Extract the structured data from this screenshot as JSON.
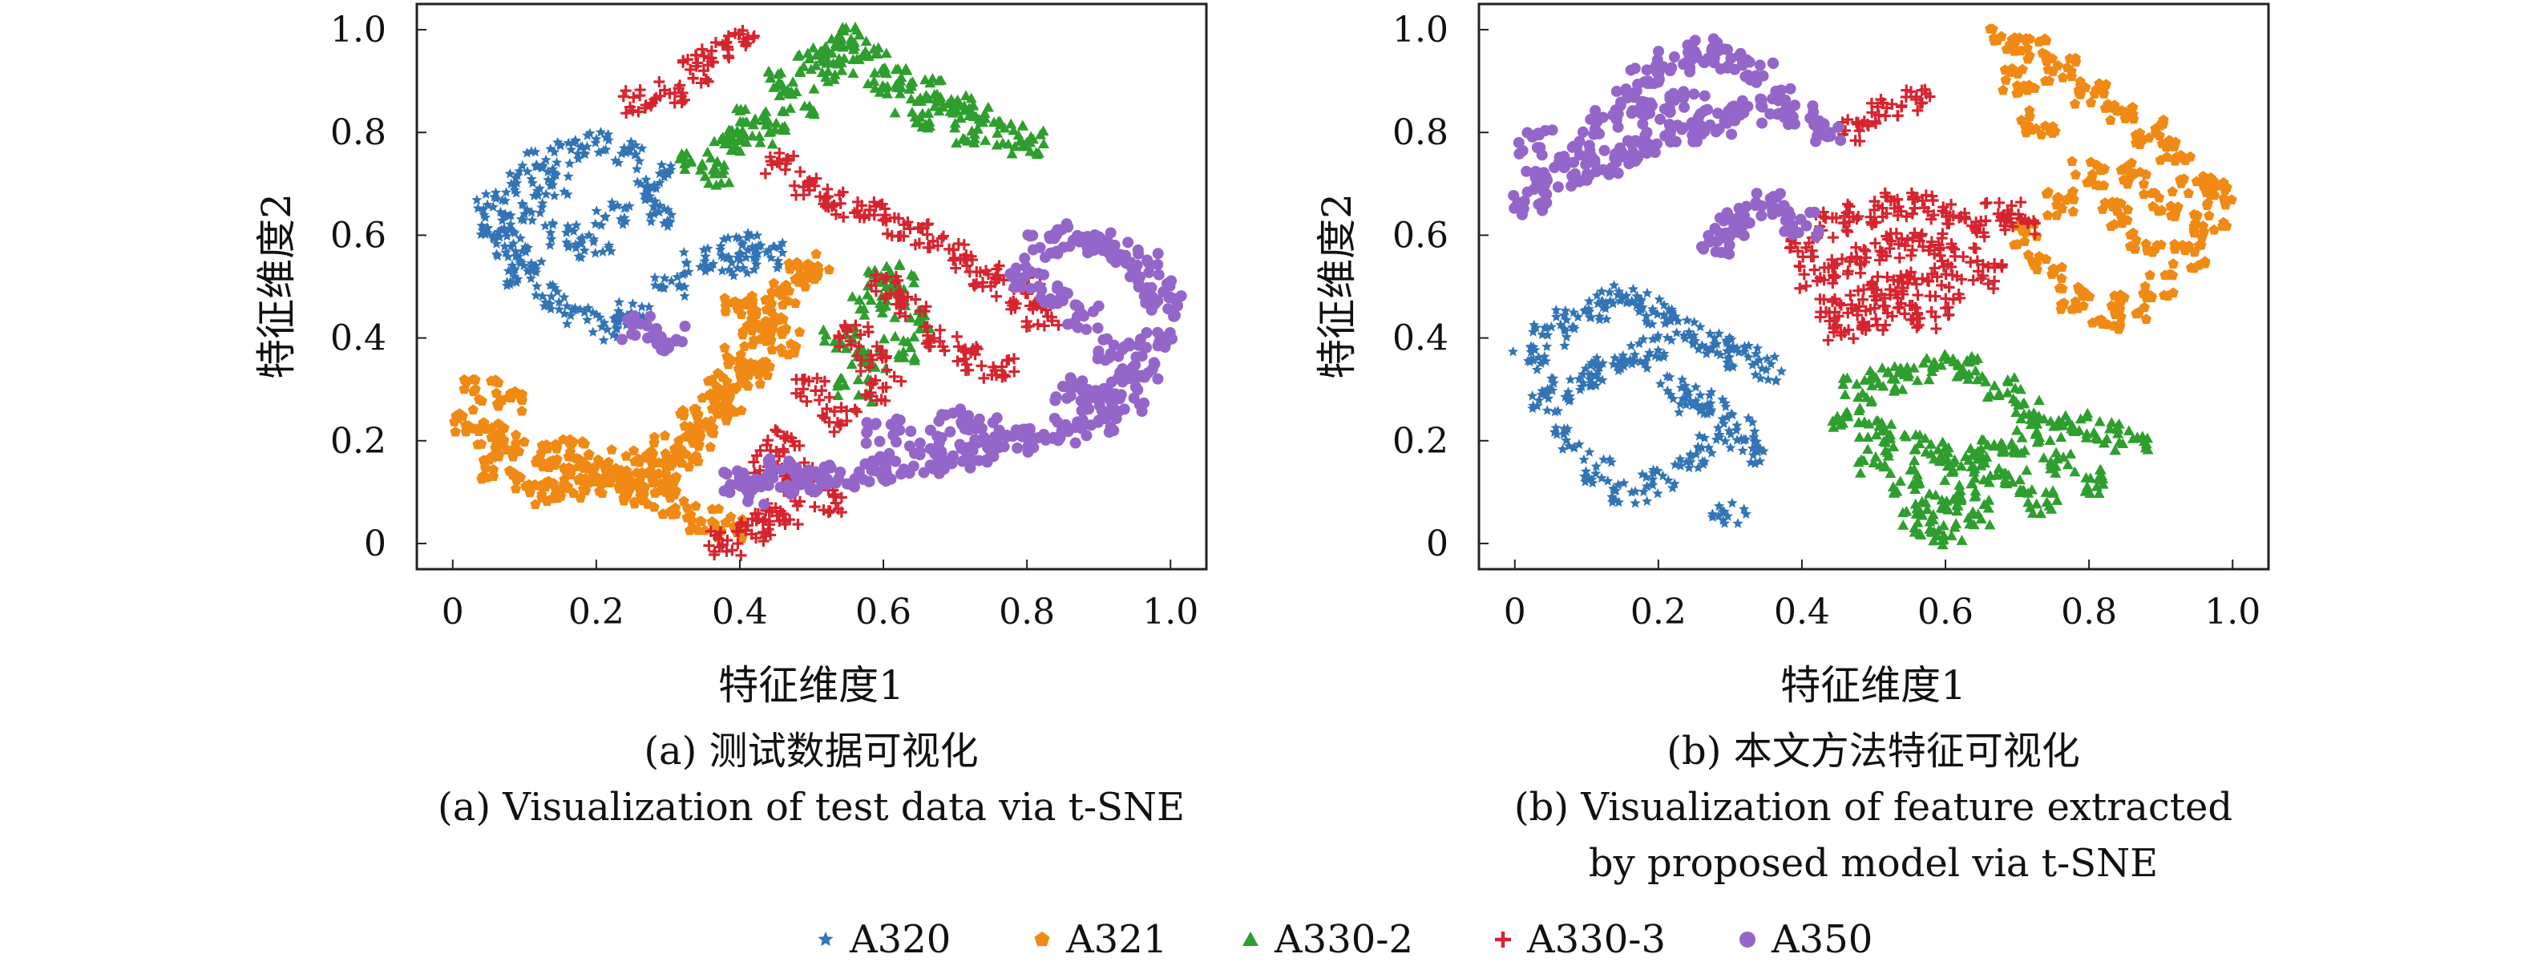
{
  "chart_data": [
    {
      "type": "scatter",
      "title": "",
      "xlabel": "特征维度1",
      "ylabel": "特征维度2",
      "xlim": [
        -0.05,
        1.05
      ],
      "ylim": [
        -0.05,
        1.05
      ],
      "xticks": [
        "0",
        "0.2",
        "0.4",
        "0.6",
        "0.8",
        "1.0"
      ],
      "yticks": [
        "0",
        "0.2",
        "0.4",
        "0.6",
        "0.8",
        "1.0"
      ],
      "xtick_values": [
        0,
        0.2,
        0.4,
        0.6,
        0.8,
        1.0
      ],
      "ytick_values": [
        0,
        0.2,
        0.4,
        0.6,
        0.8,
        1.0
      ],
      "caption_cn": "(a) 测试数据可视化",
      "caption_en": [
        "(a) Visualization of test data via t-SNE"
      ],
      "series": [
        {
          "name": "A320",
          "clusters": [
            {
              "x": [
                0.06,
                0.1,
                0.14,
                0.18,
                0.22,
                0.25,
                0.1,
                0.12,
                0.16,
                0.2,
                0.24,
                0.28,
                0.08,
                0.1,
                0.14,
                0.3,
                0.34,
                0.38,
                0.42,
                0.44,
                0.4,
                0.05,
                0.06,
                0.22,
                0.26,
                0.3,
                0.12,
                0.16,
                0.2
              ],
              "y": [
                0.62,
                0.55,
                0.48,
                0.44,
                0.42,
                0.45,
                0.7,
                0.74,
                0.76,
                0.78,
                0.76,
                0.72,
                0.58,
                0.52,
                0.7,
                0.5,
                0.55,
                0.58,
                0.58,
                0.56,
                0.54,
                0.66,
                0.6,
                0.64,
                0.68,
                0.64,
                0.64,
                0.6,
                0.58
              ]
            }
          ]
        },
        {
          "name": "A321",
          "clusters": [
            {
              "x": [
                0.02,
                0.05,
                0.08,
                0.12,
                0.16,
                0.2,
                0.24,
                0.28,
                0.3,
                0.32,
                0.34,
                0.36,
                0.38,
                0.4,
                0.42,
                0.44,
                0.46,
                0.48,
                0.5,
                0.3,
                0.26,
                0.22,
                0.18,
                0.14,
                0.1,
                0.06,
                0.34,
                0.38,
                0.42,
                0.46,
                0.35,
                0.38,
                0.3,
                0.26,
                0.2,
                0.16,
                0.08,
                0.04,
                0.4,
                0.44
              ],
              "y": [
                0.24,
                0.21,
                0.19,
                0.17,
                0.14,
                0.12,
                0.11,
                0.12,
                0.14,
                0.17,
                0.21,
                0.26,
                0.31,
                0.36,
                0.41,
                0.45,
                0.49,
                0.52,
                0.54,
                0.19,
                0.16,
                0.13,
                0.11,
                0.1,
                0.12,
                0.15,
                0.24,
                0.28,
                0.33,
                0.39,
                0.05,
                0.03,
                0.08,
                0.1,
                0.16,
                0.18,
                0.28,
                0.3,
                0.47,
                0.43
              ]
            }
          ]
        },
        {
          "name": "A330-2",
          "clusters": [
            {
              "x": [
                0.34,
                0.38,
                0.42,
                0.46,
                0.5,
                0.54,
                0.58,
                0.62,
                0.66,
                0.7,
                0.74,
                0.78,
                0.8,
                0.44,
                0.48,
                0.52,
                0.56,
                0.6,
                0.64,
                0.68,
                0.72,
                0.54,
                0.58,
                0.6,
                0.62,
                0.64,
                0.58,
                0.56,
                0.62,
                0.4,
                0.36
              ],
              "y": [
                0.74,
                0.78,
                0.84,
                0.9,
                0.94,
                0.96,
                0.94,
                0.9,
                0.88,
                0.85,
                0.83,
                0.8,
                0.78,
                0.8,
                0.86,
                0.92,
                0.98,
                0.9,
                0.82,
                0.86,
                0.8,
                0.4,
                0.46,
                0.52,
                0.5,
                0.44,
                0.36,
                0.3,
                0.38,
                0.78,
                0.72
              ]
            }
          ]
        },
        {
          "name": "A330-3",
          "clusters": [
            {
              "x": [
                0.46,
                0.5,
                0.54,
                0.58,
                0.62,
                0.66,
                0.7,
                0.74,
                0.78,
                0.8,
                0.82,
                0.6,
                0.64,
                0.68,
                0.72,
                0.76,
                0.5,
                0.54,
                0.46,
                0.44,
                0.48,
                0.52,
                0.6,
                0.58,
                0.56,
                0.26,
                0.3,
                0.34,
                0.36,
                0.4,
                0.44,
                0.42,
                0.38,
                0.46,
                0.48
              ],
              "y": [
                0.74,
                0.7,
                0.66,
                0.64,
                0.62,
                0.6,
                0.56,
                0.52,
                0.5,
                0.48,
                0.44,
                0.5,
                0.46,
                0.4,
                0.36,
                0.34,
                0.3,
                0.24,
                0.2,
                0.16,
                0.12,
                0.08,
                0.3,
                0.36,
                0.4,
                0.86,
                0.88,
                0.92,
                0.96,
                0.98,
                0.04,
                0.02,
                0.0,
                0.06,
                0.14
              ]
            }
          ]
        },
        {
          "name": "A350",
          "clusters": [
            {
              "x": [
                0.5,
                0.54,
                0.58,
                0.62,
                0.66,
                0.7,
                0.74,
                0.78,
                0.82,
                0.86,
                0.9,
                0.94,
                0.96,
                0.98,
                0.99,
                0.98,
                0.96,
                0.93,
                0.9,
                0.86,
                0.82,
                0.8,
                0.84,
                0.88,
                0.92,
                0.94,
                0.9,
                0.86,
                0.74,
                0.7,
                0.66,
                0.6,
                0.4,
                0.42,
                0.46,
                0.48,
                0.3,
                0.26
              ],
              "y": [
                0.12,
                0.13,
                0.14,
                0.15,
                0.16,
                0.17,
                0.18,
                0.2,
                0.21,
                0.22,
                0.24,
                0.28,
                0.34,
                0.4,
                0.46,
                0.5,
                0.54,
                0.57,
                0.59,
                0.6,
                0.58,
                0.52,
                0.48,
                0.44,
                0.38,
                0.32,
                0.28,
                0.3,
                0.22,
                0.24,
                0.2,
                0.22,
                0.12,
                0.1,
                0.14,
                0.12,
                0.4,
                0.42
              ]
            }
          ]
        }
      ]
    },
    {
      "type": "scatter",
      "title": "",
      "xlabel": "特征维度1",
      "ylabel": "特征维度2",
      "xlim": [
        -0.05,
        1.05
      ],
      "ylim": [
        -0.05,
        1.05
      ],
      "xticks": [
        "0",
        "0.2",
        "0.4",
        "0.6",
        "0.8",
        "1.0"
      ],
      "yticks": [
        "0",
        "0.2",
        "0.4",
        "0.6",
        "0.8",
        "1.0"
      ],
      "xtick_values": [
        0,
        0.2,
        0.4,
        0.6,
        0.8,
        1.0
      ],
      "ytick_values": [
        0,
        0.2,
        0.4,
        0.6,
        0.8,
        1.0
      ],
      "caption_cn": "(b) 本文方法特征可视化",
      "caption_en": [
        "(b) Visualization of feature extracted",
        "by proposed model via t-SNE"
      ],
      "series": [
        {
          "name": "A320",
          "clusters": [
            {
              "x": [
                0.02,
                0.05,
                0.08,
                0.11,
                0.14,
                0.17,
                0.2,
                0.23,
                0.26,
                0.29,
                0.32,
                0.35,
                0.04,
                0.07,
                0.1,
                0.13,
                0.16,
                0.19,
                0.22,
                0.25,
                0.28,
                0.31,
                0.34,
                0.08,
                0.12,
                0.16,
                0.2,
                0.24,
                0.28,
                0.3
              ],
              "y": [
                0.36,
                0.4,
                0.44,
                0.46,
                0.48,
                0.47,
                0.45,
                0.42,
                0.4,
                0.38,
                0.36,
                0.34,
                0.28,
                0.3,
                0.32,
                0.34,
                0.36,
                0.38,
                0.3,
                0.28,
                0.26,
                0.22,
                0.18,
                0.2,
                0.14,
                0.1,
                0.12,
                0.16,
                0.2,
                0.06
              ]
            }
          ]
        },
        {
          "name": "A321",
          "clusters": [
            {
              "x": [
                0.68,
                0.72,
                0.76,
                0.8,
                0.84,
                0.88,
                0.92,
                0.95,
                0.97,
                0.94,
                0.9,
                0.86,
                0.82,
                0.78,
                0.74,
                0.72,
                0.76,
                0.8,
                0.84,
                0.88,
                0.7,
                0.73,
                0.86,
                0.9,
                0.98
              ],
              "y": [
                0.98,
                0.96,
                0.92,
                0.88,
                0.84,
                0.8,
                0.76,
                0.7,
                0.62,
                0.56,
                0.5,
                0.46,
                0.44,
                0.48,
                0.54,
                0.6,
                0.66,
                0.72,
                0.64,
                0.58,
                0.9,
                0.82,
                0.72,
                0.66,
                0.68
              ]
            }
          ]
        },
        {
          "name": "A330-2",
          "clusters": [
            {
              "x": [
                0.46,
                0.5,
                0.54,
                0.58,
                0.62,
                0.66,
                0.7,
                0.74,
                0.78,
                0.82,
                0.86,
                0.48,
                0.52,
                0.56,
                0.6,
                0.64,
                0.68,
                0.72,
                0.76,
                0.8,
                0.56,
                0.6,
                0.64,
                0.5,
                0.54,
                0.58,
                0.62,
                0.66,
                0.7,
                0.74
              ],
              "y": [
                0.24,
                0.22,
                0.2,
                0.18,
                0.16,
                0.18,
                0.2,
                0.22,
                0.24,
                0.22,
                0.2,
                0.3,
                0.32,
                0.34,
                0.36,
                0.34,
                0.3,
                0.26,
                0.16,
                0.12,
                0.04,
                0.02,
                0.06,
                0.16,
                0.12,
                0.08,
                0.1,
                0.14,
                0.12,
                0.08
              ]
            }
          ]
        },
        {
          "name": "A330-3",
          "clusters": [
            {
              "x": [
                0.4,
                0.44,
                0.48,
                0.52,
                0.56,
                0.6,
                0.64,
                0.68,
                0.7,
                0.42,
                0.46,
                0.5,
                0.54,
                0.58,
                0.62,
                0.66,
                0.44,
                0.48,
                0.52,
                0.56,
                0.6,
                0.46,
                0.5,
                0.54,
                0.58,
                0.48,
                0.52,
                0.56
              ],
              "y": [
                0.58,
                0.62,
                0.64,
                0.66,
                0.66,
                0.64,
                0.62,
                0.64,
                0.62,
                0.52,
                0.54,
                0.56,
                0.58,
                0.58,
                0.56,
                0.52,
                0.46,
                0.48,
                0.5,
                0.52,
                0.5,
                0.42,
                0.44,
                0.46,
                0.44,
                0.8,
                0.84,
                0.86
              ]
            }
          ]
        },
        {
          "name": "A350",
          "clusters": [
            {
              "x": [
                0.02,
                0.04,
                0.08,
                0.12,
                0.16,
                0.2,
                0.24,
                0.28,
                0.32,
                0.36,
                0.4,
                0.44,
                0.18,
                0.22,
                0.26,
                0.3,
                0.34,
                0.2,
                0.24,
                0.16,
                0.12,
                0.08,
                0.3,
                0.28,
                0.32,
                0.36,
                0.03,
                0.4
              ],
              "y": [
                0.66,
                0.7,
                0.72,
                0.74,
                0.76,
                0.78,
                0.8,
                0.82,
                0.84,
                0.86,
                0.84,
                0.8,
                0.9,
                0.94,
                0.96,
                0.94,
                0.92,
                0.84,
                0.86,
                0.86,
                0.82,
                0.76,
                0.62,
                0.58,
                0.64,
                0.66,
                0.78,
                0.62
              ]
            }
          ]
        }
      ]
    }
  ],
  "legend": {
    "items": [
      {
        "label": "A320",
        "color": "#3274b5",
        "marker": "star"
      },
      {
        "label": "A321",
        "color": "#f08a14",
        "marker": "pentagon"
      },
      {
        "label": "A330-2",
        "color": "#2e9e2e",
        "marker": "triangle"
      },
      {
        "label": "A330-3",
        "color": "#d6242f",
        "marker": "plus"
      },
      {
        "label": "A350",
        "color": "#9466c9",
        "marker": "circle"
      }
    ]
  }
}
